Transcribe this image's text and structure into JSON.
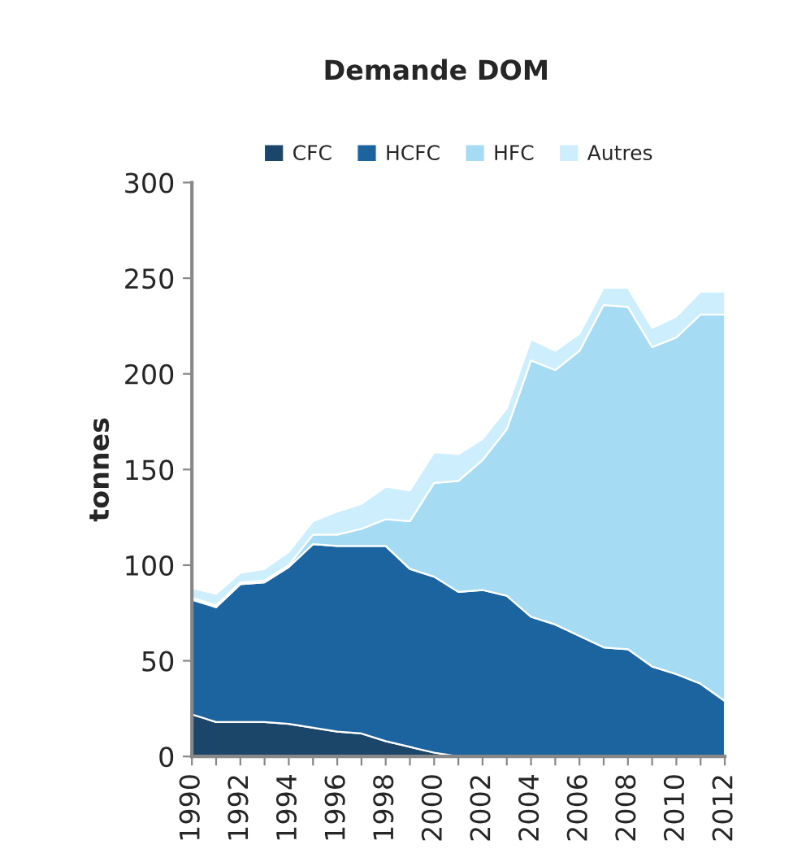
{
  "chart_data": {
    "type": "area",
    "stacked": true,
    "title": "Demande DOM",
    "ylabel": "tonnes",
    "x": [
      1990,
      1991,
      1992,
      1993,
      1994,
      1995,
      1996,
      1997,
      1998,
      1999,
      2000,
      2001,
      2002,
      2003,
      2004,
      2005,
      2006,
      2007,
      2008,
      2009,
      2010,
      2011,
      2012
    ],
    "series": [
      {
        "name": "CFC",
        "color": "#1c4669",
        "values": [
          22,
          18,
          18,
          18,
          17,
          15,
          13,
          12,
          8,
          5,
          2,
          0,
          0,
          0,
          0,
          0,
          0,
          0,
          0,
          0,
          0,
          0,
          0
        ]
      },
      {
        "name": "HCFC",
        "color": "#1b64a0",
        "values": [
          60,
          60,
          72,
          73,
          82,
          96,
          97,
          98,
          102,
          93,
          92,
          86,
          87,
          84,
          73,
          69,
          63,
          57,
          56,
          47,
          43,
          38,
          29
        ]
      },
      {
        "name": "HFC",
        "color": "#a5dcf4",
        "values": [
          1,
          1,
          1,
          1,
          1,
          5,
          6,
          9,
          14,
          25,
          49,
          58,
          68,
          87,
          134,
          133,
          149,
          179,
          179,
          167,
          176,
          193,
          202
        ]
      },
      {
        "name": "Autres",
        "color": "#cdeefc",
        "values": [
          5,
          6,
          5,
          6,
          7,
          7,
          12,
          13,
          17,
          16,
          16,
          14,
          11,
          11,
          11,
          10,
          9,
          9,
          10,
          10,
          11,
          12,
          12
        ]
      }
    ],
    "xlim": [
      1990,
      2012
    ],
    "xticks": [
      1990,
      {
        "value": 1991,
        "label": null
      },
      1992,
      {
        "value": 1993,
        "label": null
      },
      1994,
      {
        "value": 1995,
        "label": null
      },
      1996,
      {
        "value": 1997,
        "label": null
      },
      1998,
      {
        "value": 1999,
        "label": null
      },
      2000,
      {
        "value": 2001,
        "label": null
      },
      2002,
      {
        "value": 2003,
        "label": null
      },
      2004,
      {
        "value": 2005,
        "label": null
      },
      2006,
      {
        "value": 2007,
        "label": null
      },
      2008,
      {
        "value": 2009,
        "label": null
      },
      2010,
      {
        "value": 2011,
        "label": null
      },
      2012
    ],
    "ylim": [
      0,
      300
    ],
    "yticks": [
      0,
      50,
      100,
      150,
      200,
      250,
      300
    ],
    "grid": false,
    "legend": "top"
  }
}
